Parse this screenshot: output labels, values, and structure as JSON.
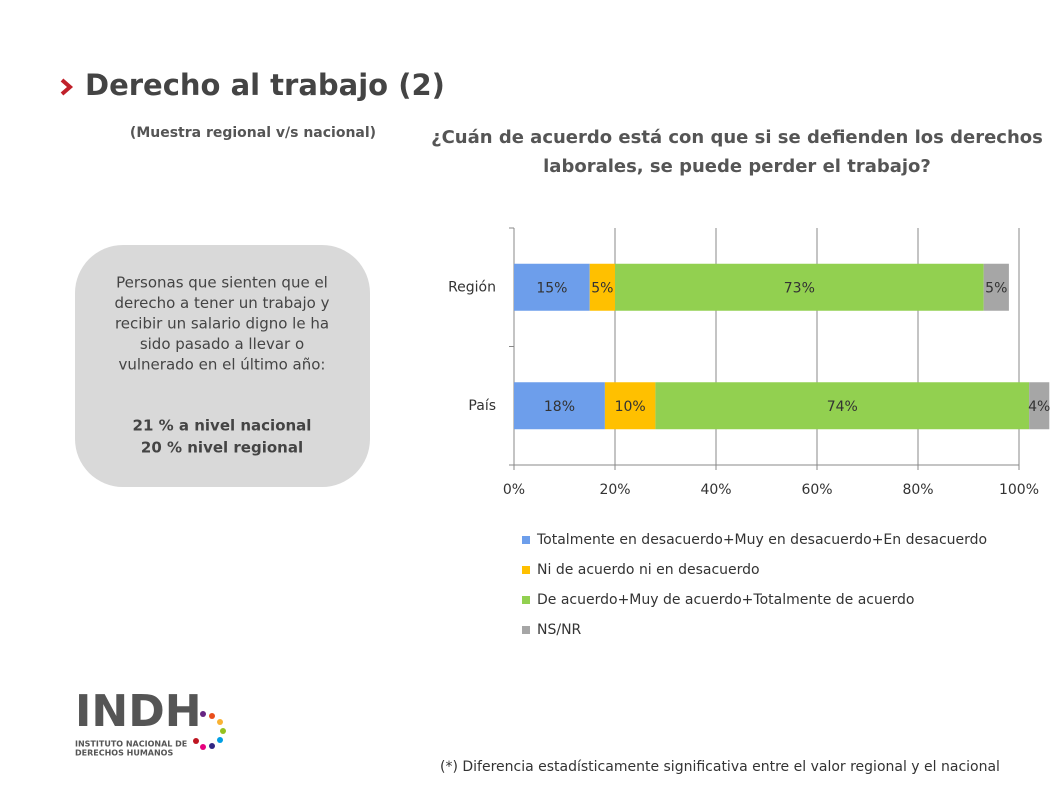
{
  "header": {
    "title": "Derecho al trabajo (2)",
    "subtitle": "(Muestra regional v/s nacional)"
  },
  "callout": {
    "lines": [
      "Personas que sienten que el",
      "derecho a tener un trabajo y",
      "recibir un salario digno le ha",
      "sido pasado a llevar o",
      "vulnerado en el último año:"
    ],
    "highlights": [
      "21 % a nivel nacional",
      "20 % nivel regional"
    ]
  },
  "logo": {
    "mark": "INDH",
    "lines": [
      "INSTITUTO NACIONAL DE",
      "DERECHOS HUMANOS"
    ]
  },
  "footnote": "(*) Diferencia estadísticamente significativa entre el valor regional y el nacional",
  "chart_data": {
    "type": "stacked-barh",
    "title": [
      "¿Cuán de acuerdo está con que si se defienden los derechos",
      "laborales, se puede perder el trabajo?"
    ],
    "categories": [
      "Región",
      "País"
    ],
    "series": [
      {
        "name": "Totalmente en desacuerdo+Muy en desacuerdo+En desacuerdo",
        "color": "#6d9eeb",
        "values": [
          15,
          18
        ],
        "value_labels": [
          "15%",
          "18%"
        ]
      },
      {
        "name": "Ni de acuerdo ni en desacuerdo",
        "color": "#ffc000",
        "values": [
          5,
          10
        ],
        "value_labels": [
          "5%",
          "10%"
        ]
      },
      {
        "name": "De acuerdo+Muy de acuerdo+Totalmente de acuerdo",
        "color": "#92d050",
        "values": [
          73,
          74
        ],
        "value_labels": [
          "73%",
          "74%"
        ]
      },
      {
        "name": "NS/NR",
        "color": "#a6a6a6",
        "values": [
          5,
          4
        ],
        "value_labels": [
          "5%",
          "4%"
        ]
      }
    ],
    "annotation": "*",
    "xlim": [
      0,
      100
    ],
    "xticks": [
      {
        "value": 0,
        "label": "0%"
      },
      {
        "value": 20,
        "label": "20%"
      },
      {
        "value": 40,
        "label": "40%"
      },
      {
        "value": 60,
        "label": "60%"
      },
      {
        "value": 80,
        "label": "80%"
      },
      {
        "value": 100,
        "label": "100%"
      }
    ],
    "grid": true,
    "legend": "bottom"
  }
}
